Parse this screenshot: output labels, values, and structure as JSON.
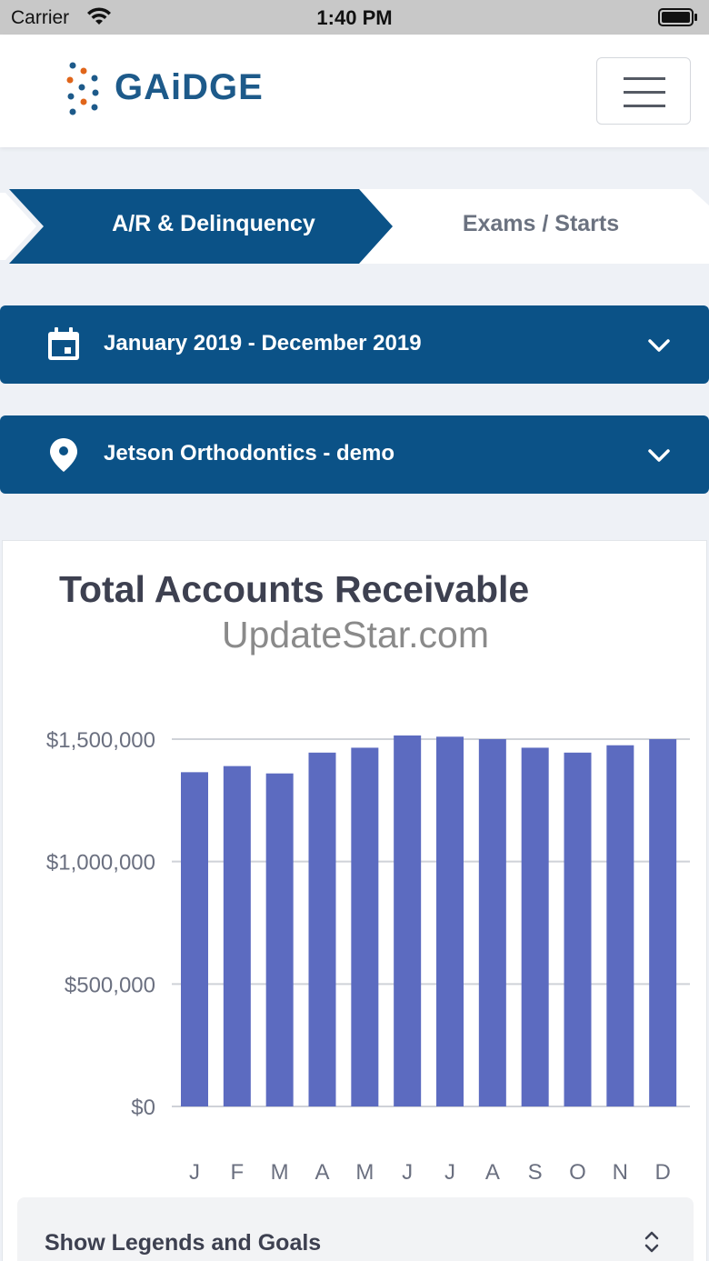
{
  "status_bar": {
    "carrier": "Carrier",
    "time": "1:40 PM"
  },
  "header": {
    "brand": "GAiDGE"
  },
  "tabs": [
    {
      "label": "A/R & Delinquency",
      "active": true
    },
    {
      "label": "Exams / Starts",
      "active": false
    }
  ],
  "date_range": {
    "label": "January 2019 - December 2019",
    "icon": "calendar-icon"
  },
  "location": {
    "label": "Jetson Orthodontics - demo",
    "icon": "location-pin-icon"
  },
  "card": {
    "title": "Total Accounts Receivable",
    "watermark": "UpdateStar.com"
  },
  "chart_data": {
    "type": "bar",
    "categories": [
      "J",
      "F",
      "M",
      "A",
      "M",
      "J",
      "J",
      "A",
      "S",
      "O",
      "N",
      "D"
    ],
    "values": [
      1365000,
      1390000,
      1360000,
      1445000,
      1465000,
      1515000,
      1510000,
      1500000,
      1465000,
      1445000,
      1475000,
      1500000
    ],
    "ylim": [
      0,
      1500000
    ],
    "yticks": [
      0,
      500000,
      1000000,
      1500000
    ],
    "ytick_labels": [
      "$0",
      "$500,000",
      "$1,000,000",
      "$1,500,000"
    ],
    "bar_color": "#5c6bc0",
    "grid": true
  },
  "legend_toggle": {
    "label": "Show Legends and Goals"
  },
  "colors": {
    "primary": "#0b5287",
    "accent_orange": "#e0651a",
    "brand_blue": "#1d5a8a"
  }
}
